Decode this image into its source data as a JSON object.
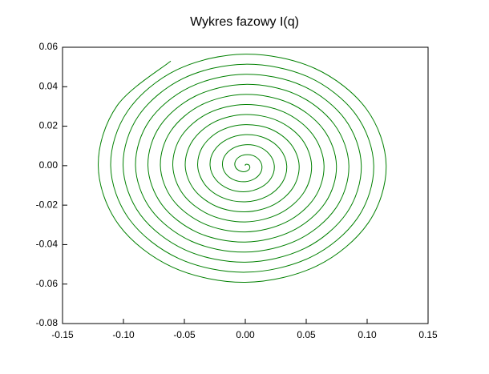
{
  "chart_data": {
    "type": "line",
    "title": "Wykres fazowy I(q)",
    "color": "#008000",
    "xlim": [
      -0.15,
      0.15
    ],
    "xticks": [
      {
        "value": -0.15,
        "label": "-0.15"
      },
      {
        "value": -0.1,
        "label": "-0.10"
      },
      {
        "value": -0.05,
        "label": "-0.05"
      },
      {
        "value": 0,
        "label": "0.00"
      },
      {
        "value": 0.05,
        "label": "0.05"
      },
      {
        "value": 0.1,
        "label": "0.10"
      },
      {
        "value": 0.15,
        "label": "0.15"
      }
    ],
    "ylim": [
      -0.08,
      0.06
    ],
    "yticks": [
      {
        "value": -0.08,
        "label": "-0.08"
      },
      {
        "value": -0.06,
        "label": "-0.06"
      },
      {
        "value": -0.04,
        "label": "-0.04"
      },
      {
        "value": -0.02,
        "label": "-0.02"
      },
      {
        "value": 0,
        "label": "0.00"
      },
      {
        "value": 0.02,
        "label": "0.02"
      },
      {
        "value": 0.04,
        "label": "0.04"
      },
      {
        "value": 0.06,
        "label": "0.06"
      }
    ],
    "x": [
      -0.0612,
      -0.1052,
      -0.1207,
      -0.1038,
      -0.0595,
      0,
      0.0587,
      0.1008,
      0.1156,
      0.0994,
      0.057,
      0,
      -0.0561,
      -0.0964,
      -0.1105,
      -0.0949,
      -0.0544,
      0,
      0.0536,
      0.092,
      0.1054,
      0.0905,
      0.0519,
      0,
      -0.051,
      -0.0876,
      -0.1003,
      -0.0861,
      -0.0493,
      0,
      0.0485,
      0.0832,
      0.0952,
      0.0817,
      0.0468,
      0,
      -0.0459,
      -0.0788,
      -0.0901,
      -0.0773,
      -0.0442,
      0,
      0.0434,
      0.0743,
      0.085,
      0.0729,
      0.0417,
      0,
      -0.0408,
      -0.0699,
      -0.0799,
      -0.0684,
      -0.0391,
      0,
      0.0383,
      0.0655,
      0.0748,
      0.064,
      0.0366,
      0,
      -0.0357,
      -0.0611,
      -0.0697,
      -0.0596,
      -0.034,
      0,
      0.0332,
      0.0567,
      0.0646,
      0.0552,
      0.0315,
      0,
      -0.0306,
      -0.0523,
      -0.0595,
      -0.0508,
      -0.0289,
      0,
      0.0281,
      0.0478,
      0.0544,
      0.0464,
      0.0264,
      0,
      -0.0255,
      -0.0434,
      -0.0493,
      -0.042,
      -0.0238,
      0,
      0.023,
      0.039,
      0.0442,
      0.0375,
      0.0213,
      0,
      -0.0204,
      -0.0346,
      -0.0391,
      -0.0331,
      -0.0187,
      0,
      0.0179,
      0.0302,
      0.034,
      0.0287,
      0.0162,
      0,
      -0.0153,
      -0.0258,
      -0.0289,
      -0.0243,
      -0.0136,
      0,
      0.0128,
      0.0213,
      0.0238,
      0.0199,
      0.0111,
      0,
      -0.0102,
      -0.0169,
      -0.0187,
      -0.0155,
      -0.0085,
      0,
      0.0077,
      0.0125,
      0.0136,
      0.011,
      0.006,
      0,
      -0.0051,
      -0.0081,
      -0.0085,
      -0.0066,
      -0.0034,
      0,
      0.0026,
      0.0037,
      0.0034,
      0.0022,
      0.0009,
      0,
      0
    ],
    "values": [
      0.053,
      0.0304,
      0,
      -0.03,
      -0.0515,
      -0.0591,
      -0.0508,
      -0.0291,
      0,
      0.0287,
      0.0493,
      0.0565,
      0.0486,
      0.0278,
      0,
      -0.0274,
      -0.0471,
      -0.054,
      -0.0464,
      -0.0266,
      0,
      0.0261,
      0.0449,
      0.0514,
      0.0442,
      0.0253,
      0,
      -0.0249,
      -0.0427,
      -0.0489,
      -0.042,
      -0.024,
      0,
      0.0236,
      0.0405,
      0.0463,
      0.0397,
      0.0227,
      0,
      -0.0223,
      -0.0383,
      -0.0438,
      -0.0375,
      -0.0215,
      0,
      0.021,
      0.0361,
      0.0412,
      0.0353,
      0.0202,
      0,
      -0.0198,
      -0.0339,
      -0.0387,
      -0.0331,
      -0.0189,
      0,
      0.0185,
      0.0316,
      0.0361,
      0.0309,
      0.0176,
      0,
      -0.0172,
      -0.0294,
      -0.0336,
      -0.0287,
      -0.0164,
      0,
      0.0159,
      0.0272,
      0.031,
      0.0265,
      0.0151,
      0,
      -0.0147,
      -0.025,
      -0.0285,
      -0.0243,
      -0.0138,
      0,
      0.0134,
      0.0228,
      0.0259,
      0.0221,
      0.0125,
      0,
      -0.0121,
      -0.0206,
      -0.0234,
      -0.0199,
      -0.0113,
      0,
      0.0108,
      0.0184,
      0.0208,
      0.0177,
      0.01,
      0,
      -0.0096,
      -0.0162,
      -0.0183,
      -0.0155,
      -0.0087,
      0,
      0.0083,
      0.014,
      0.0157,
      0.0132,
      0.0074,
      0,
      -0.007,
      -0.0118,
      -0.0132,
      -0.011,
      -0.0062,
      0,
      0.0057,
      0.0096,
      0.0106,
      0.0088,
      0.0049,
      0,
      -0.0045,
      -0.0074,
      -0.0081,
      -0.0066,
      -0.0036,
      0,
      0.0032,
      0.0052,
      0.0055,
      0.0044,
      0.0023,
      0,
      -0.0019,
      -0.0029,
      -0.003,
      -0.0022,
      -0.0011,
      0,
      0.0006,
      0.0007,
      0.0004,
      0
    ]
  }
}
